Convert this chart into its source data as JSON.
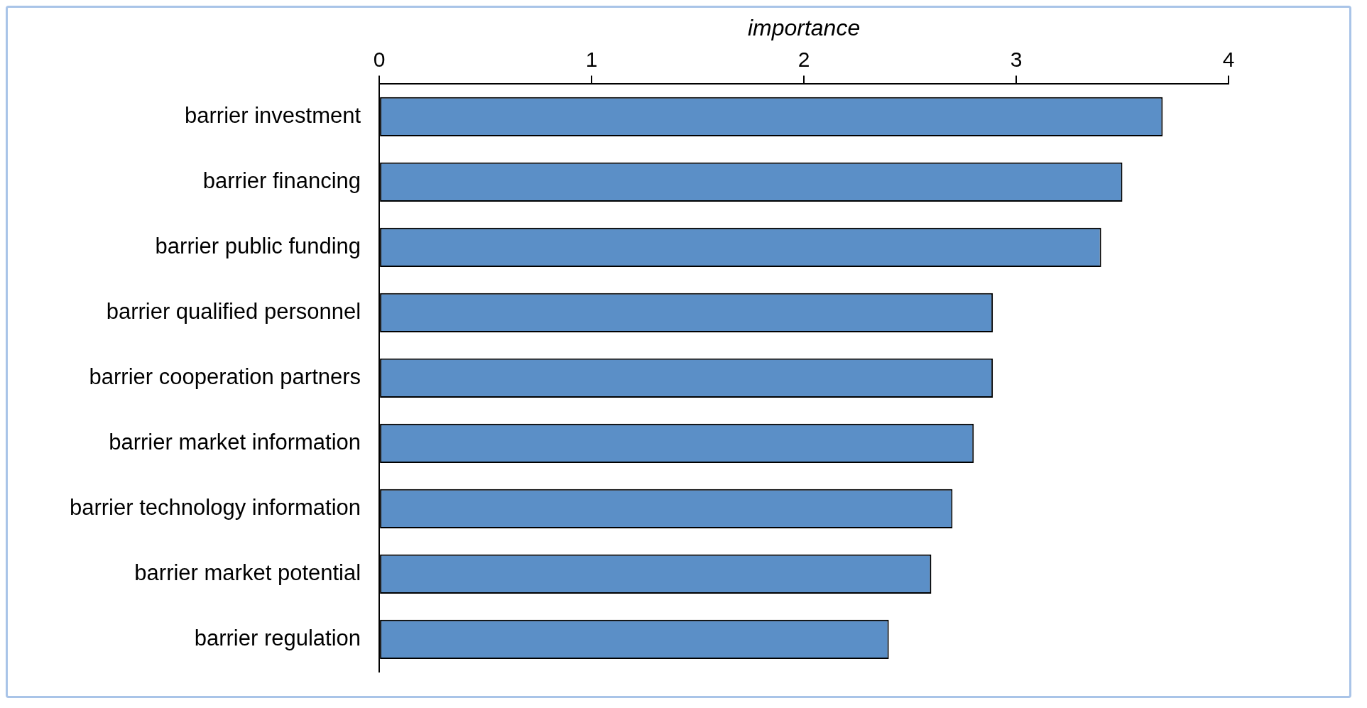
{
  "chart_data": {
    "type": "bar",
    "orientation": "horizontal",
    "xlabel": "importance",
    "categories": [
      "barrier investment",
      "barrier financing",
      "barrier public funding",
      "barrier qualified personnel",
      "barrier cooperation partners",
      "barrier market information",
      "barrier technology information",
      "barrier market potential",
      "barrier regulation"
    ],
    "values": [
      3.69,
      3.5,
      3.4,
      2.89,
      2.89,
      2.8,
      2.7,
      2.6,
      2.4
    ],
    "color": "#5b8fc7",
    "xlim": [
      0,
      4
    ],
    "xticks": [
      0,
      1,
      2,
      3,
      4
    ],
    "legend": false
  }
}
